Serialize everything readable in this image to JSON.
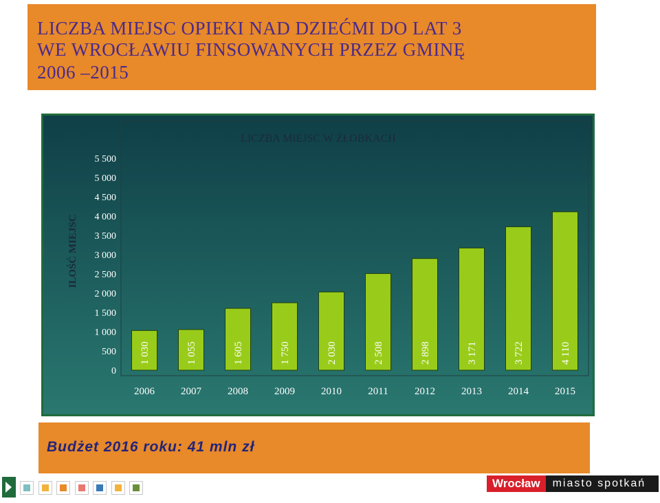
{
  "header": {
    "title_lines": [
      "LICZBA MIEJSC OPIEKI NAD DZIEĆMI DO LAT  3",
      "WE WROCŁAWIU FINSOWANYCH PRZEZ GMINĘ",
      "2006 –2015"
    ]
  },
  "chart_data": {
    "type": "bar",
    "title": "LICZBA MIEJSC W ŻŁOBKACH",
    "ylabel": "ILOŚĆ MIEJSC",
    "xlabel": "",
    "categories": [
      "2006",
      "2007",
      "2008",
      "2009",
      "2010",
      "2011",
      "2012",
      "2013",
      "2014",
      "2015"
    ],
    "values": [
      1030,
      1055,
      1605,
      1750,
      2030,
      2508,
      2898,
      3171,
      3722,
      4110
    ],
    "value_labels": [
      "1 030",
      "1 055",
      "1 605",
      "1 750",
      "2 030",
      "2 508",
      "2 898",
      "3 171",
      "3 722",
      "4 110"
    ],
    "yticks": [
      0,
      500,
      1000,
      1500,
      2000,
      2500,
      3000,
      3500,
      4000,
      4500,
      5000,
      5500
    ],
    "ytick_labels": [
      "0",
      "500",
      "1 000",
      "1 500",
      "2 000",
      "2 500",
      "3 000",
      "3 500",
      "4 000",
      "4 500",
      "5 000",
      "5 500"
    ],
    "ylim": [
      0,
      5500
    ],
    "grid": false,
    "colors": {
      "bar": "#99cc1a",
      "bar_border": "#1f3f10",
      "plot_bg_top": "#0f3f47",
      "plot_bg_bottom": "#2a7870",
      "text": "#ffffff"
    }
  },
  "footer": {
    "budget_text": "Budżet 2016 roku:  41 mln zł"
  },
  "brand": {
    "logo_left": "Wrocław",
    "logo_right": "miasto spotkań"
  },
  "nav": {
    "squares": [
      {
        "icon": "arrow-right-icon",
        "fill": "#1f6b3c",
        "border": "#1f6b3c"
      },
      {
        "icon": "square-icon",
        "fill": "#7fbfbf",
        "border": "#ffffff"
      },
      {
        "icon": "square-icon",
        "fill": "#f2b33a",
        "border": "#ffffff"
      },
      {
        "icon": "square-icon",
        "fill": "#e8892a",
        "border": "#ffffff"
      },
      {
        "icon": "square-icon",
        "fill": "#e87870",
        "border": "#ffffff"
      },
      {
        "icon": "square-icon",
        "fill": "#3a7ab8",
        "border": "#ffffff"
      },
      {
        "icon": "square-icon",
        "fill": "#f2b33a",
        "border": "#ffffff"
      },
      {
        "icon": "square-icon",
        "fill": "#6a8f3a",
        "border": "#ffffff"
      }
    ]
  }
}
